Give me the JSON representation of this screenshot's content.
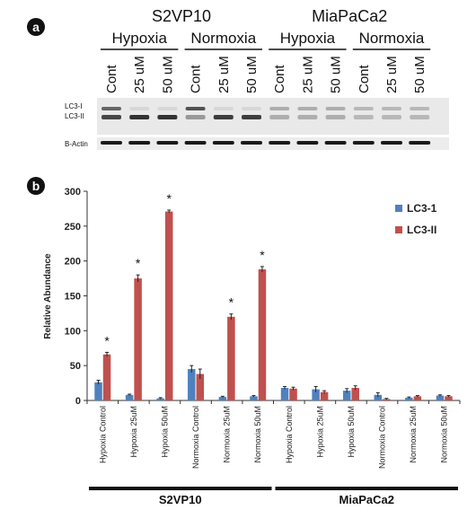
{
  "panel_a": {
    "letter": "a",
    "cell_lines": [
      {
        "name": "S2VP10",
        "conditions": [
          "Hypoxia",
          "Normoxia"
        ]
      },
      {
        "name": "MiaPaCa2",
        "conditions": [
          "Hypoxia",
          "Normoxia"
        ]
      }
    ],
    "lane_labels": [
      "Cont",
      "25 uM",
      "50 uM",
      "Cont",
      "25 uM",
      "50 uM",
      "Cont",
      "25 uM",
      "50 uM",
      "Cont",
      "25 uM",
      "50 uM"
    ],
    "blot_labels": {
      "lc3_1": "LC3-I",
      "lc3_2": "LC3-II",
      "actin": "B-Actin"
    },
    "lc3_1_intensity": [
      0.6,
      0.05,
      0.05,
      0.7,
      0.05,
      0.05,
      0.25,
      0.25,
      0.25,
      0.2,
      0.2,
      0.2
    ],
    "lc3_2_intensity": [
      0.75,
      0.85,
      0.85,
      0.35,
      0.8,
      0.8,
      0.25,
      0.25,
      0.25,
      0.2,
      0.2,
      0.2
    ]
  },
  "panel_b": {
    "letter": "b",
    "chart_data": {
      "type": "bar",
      "ylabel": "Relative Abundance",
      "ylim": [
        0,
        300
      ],
      "yticks": [
        "0",
        "50",
        "100",
        "150",
        "200",
        "250",
        "300"
      ],
      "categories": [
        "Hypoxia Control",
        "Hypoxia 25uM",
        "Hypoxia 50uM",
        "Normoxia Control",
        "Normoxia 25uM",
        "Normoxia 50uM",
        "Hypoxia Control",
        "Hypoxia 25uM",
        "Hypoxia 50uM",
        "Normoxia Control",
        "Normoxia 25uM",
        "Normoxia 50uM"
      ],
      "series": [
        {
          "name": "LC3-1",
          "color": "#4f81bd",
          "values": [
            26,
            8,
            3,
            45,
            5,
            6,
            18,
            16,
            14,
            8,
            4,
            7
          ],
          "errors": [
            3,
            1,
            1,
            5,
            1,
            1,
            2,
            4,
            3,
            3,
            1,
            1
          ]
        },
        {
          "name": "LC3-II",
          "color": "#c0504d",
          "values": [
            66,
            175,
            271,
            38,
            120,
            188,
            17,
            12,
            18,
            2,
            6,
            6
          ],
          "errors": [
            3,
            5,
            2,
            7,
            4,
            4,
            2,
            2,
            3,
            1,
            1,
            1
          ]
        }
      ],
      "significance_marker": "*",
      "significant": [
        true,
        true,
        true,
        false,
        true,
        true,
        false,
        false,
        false,
        false,
        false,
        false
      ],
      "groups": [
        {
          "name": "S2VP10",
          "from": 0,
          "to": 5
        },
        {
          "name": "MiaPaCa2",
          "from": 6,
          "to": 11
        }
      ],
      "legend_position": "top-right",
      "grid": false
    }
  }
}
